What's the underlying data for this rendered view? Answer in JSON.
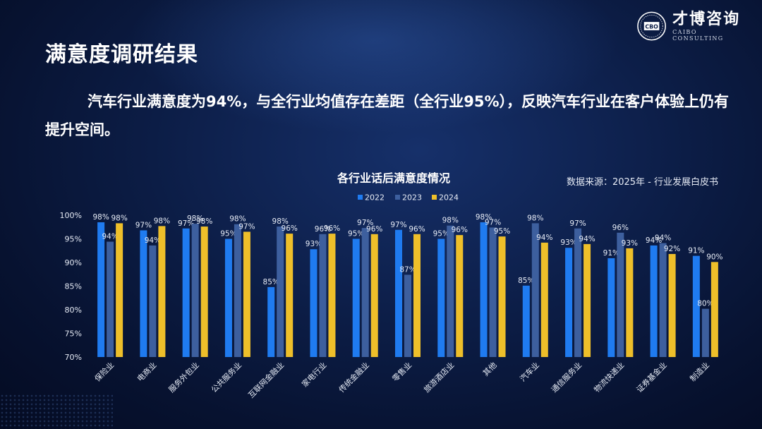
{
  "header": {
    "title": "满意度调研结果",
    "summary": "汽车行业满意度为94%，与全行业均值存在差距（全行业95%），反映汽车行业在客户体验上仍有提升空间。"
  },
  "logo": {
    "name_cn": "才博咨询",
    "name_en": "CAIBO CONSULTING",
    "mark_text": "CBO"
  },
  "source_note": "数据来源：2025年 - 行业发展白皮书",
  "colors": {
    "series_2022": "#1f7bf0",
    "series_2023": "#3d5f9e",
    "series_2024": "#eebf2a"
  },
  "chart_data": {
    "type": "bar",
    "title": "各行业话后满意度情况",
    "xlabel": "",
    "ylabel": "",
    "ylim": [
      70,
      100
    ],
    "yticks": [
      "70%",
      "75%",
      "80%",
      "85%",
      "90%",
      "95%",
      "100%"
    ],
    "legend_position": "top-center",
    "grid": false,
    "categories": [
      "保险业",
      "电商业",
      "服务外包业",
      "公共服务业",
      "互联网金融业",
      "家电行业",
      "传统金融业",
      "零售业",
      "旅游酒店业",
      "其他",
      "汽车业",
      "通信服务业",
      "物流快递业",
      "证券基金业",
      "制造业"
    ],
    "series": [
      {
        "name": "2022",
        "values": [
          98.5,
          96.8,
          97.2,
          95.0,
          84.8,
          92.8,
          95.0,
          96.9,
          95.0,
          98.5,
          85.1,
          93.1,
          90.9,
          93.6,
          91.4
        ],
        "labels": [
          "98%",
          "97%",
          "97%",
          "95%",
          "85%",
          "93%",
          "95%",
          "97%",
          "95%",
          "98%",
          "85%",
          "93%",
          "91%",
          "94%",
          "91%"
        ]
      },
      {
        "name": "2023",
        "values": [
          94.4,
          93.6,
          98.2,
          98.1,
          97.6,
          96.0,
          97.3,
          87.4,
          97.8,
          97.4,
          98.3,
          97.2,
          96.3,
          94.1,
          80.2
        ],
        "labels": [
          "94%",
          "94%",
          "98%",
          "98%",
          "98%",
          "96%",
          "97%",
          "87%",
          "98%",
          "97%",
          "98%",
          "97%",
          "96%",
          "94%",
          "80%"
        ]
      },
      {
        "name": "2024",
        "values": [
          98.3,
          97.7,
          97.6,
          96.5,
          96.1,
          96.1,
          96.0,
          96.0,
          95.8,
          95.5,
          94.2,
          93.9,
          93.0,
          91.8,
          90.1
        ],
        "labels": [
          "98%",
          "98%",
          "98%",
          "97%",
          "96%",
          "96%",
          "96%",
          "96%",
          "96%",
          "95%",
          "94%",
          "94%",
          "93%",
          "92%",
          "90%"
        ]
      }
    ]
  }
}
